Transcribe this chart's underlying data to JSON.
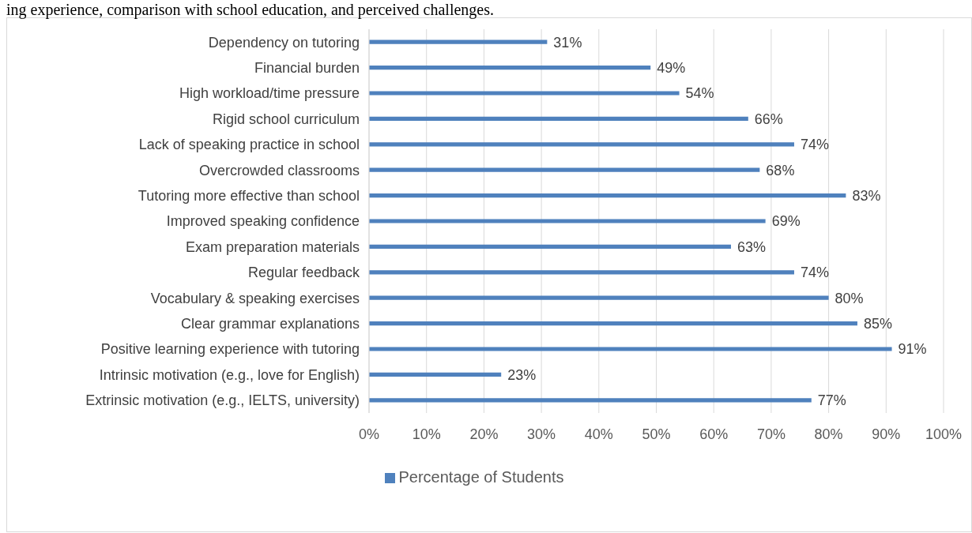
{
  "chart_data": {
    "type": "bar",
    "orientation": "horizontal",
    "annotations": [
      "ing experience, comparison with school education, and perceived challenges."
    ],
    "categories": [
      "Dependency on tutoring",
      "Financial burden",
      "High workload/time pressure",
      "Rigid school curriculum",
      "Lack of speaking practice in school",
      "Overcrowded classrooms",
      "Tutoring more effective than school",
      "Improved speaking confidence",
      "Exam preparation materials",
      "Regular feedback",
      "Vocabulary & speaking exercises",
      "Clear grammar explanations",
      "Positive learning experience with tutoring",
      "Intrinsic motivation (e.g., love for English)",
      "Extrinsic motivation (e.g., IELTS, university)"
    ],
    "series": [
      {
        "name": "Percentage of Students",
        "color": "#4f81bd",
        "values": [
          31,
          49,
          54,
          66,
          74,
          68,
          83,
          69,
          63,
          74,
          80,
          85,
          91,
          23,
          77
        ],
        "value_labels": [
          "31%",
          "49%",
          "54%",
          "66%",
          "74%",
          "68%",
          "83%",
          "69%",
          "63%",
          "74%",
          "80%",
          "85%",
          "91%",
          "23%",
          "77%"
        ]
      }
    ],
    "xlim": [
      0,
      100
    ],
    "xticks": [
      {
        "value": 0,
        "label": "0%"
      },
      {
        "value": 10,
        "label": "10%"
      },
      {
        "value": 20,
        "label": "20%"
      },
      {
        "value": 30,
        "label": "30%"
      },
      {
        "value": 40,
        "label": "40%"
      },
      {
        "value": 50,
        "label": "50%"
      },
      {
        "value": 60,
        "label": "60%"
      },
      {
        "value": 70,
        "label": "70%"
      },
      {
        "value": 80,
        "label": "80%"
      },
      {
        "value": 90,
        "label": "90%"
      },
      {
        "value": 100,
        "label": "100%"
      }
    ],
    "grid": "x",
    "legend": "bottom"
  }
}
